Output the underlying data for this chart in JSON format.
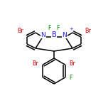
{
  "bg_color": "#ffffff",
  "N_color": "#1a1aff",
  "B_color": "#1a1aff",
  "Br_color": "#cc0000",
  "F_color": "#008800",
  "bond_color": "#000000",
  "bond_lw": 1.1,
  "figsize": [
    1.52,
    1.52
  ],
  "dpi": 100,
  "xlim": [
    0,
    152
  ],
  "ylim": [
    0,
    152
  ]
}
